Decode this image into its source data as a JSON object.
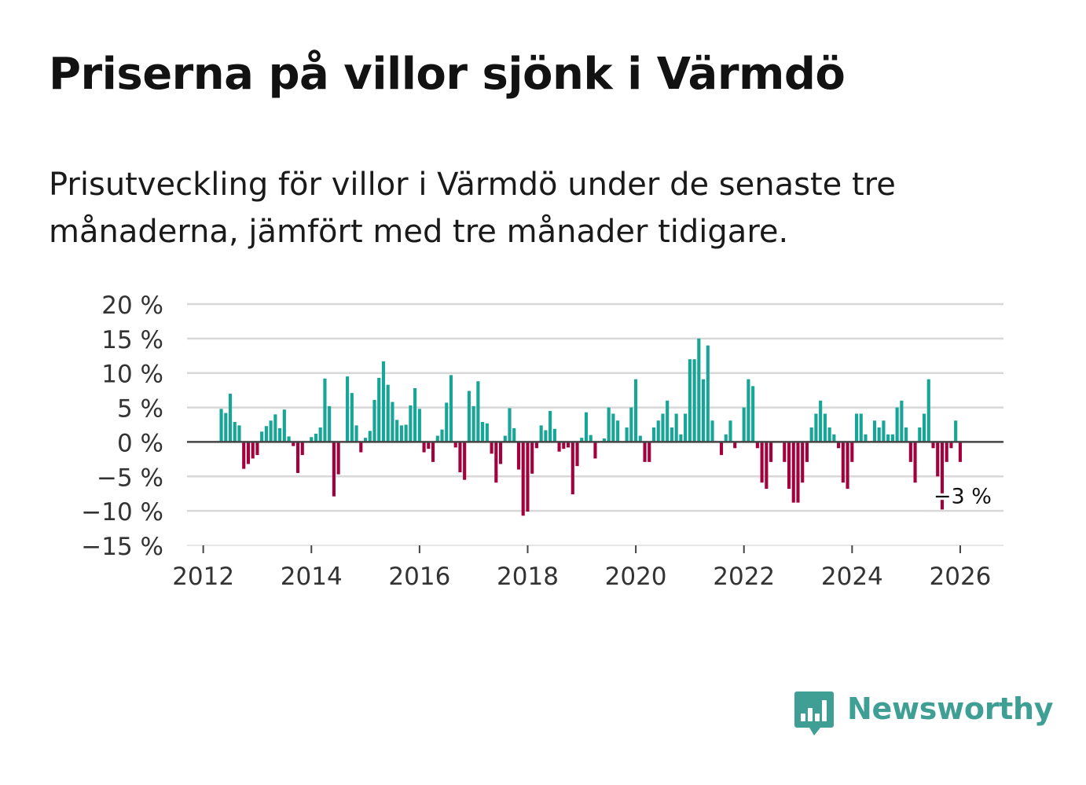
{
  "title": "Priserna på villor sjönk i Värmdö",
  "subtitle": "Prisutveckling för villor i Värmdö under de senaste tre månaderna, jämfört med tre månader tidigare.",
  "brand": {
    "name": "Newsworthy",
    "icon": "newsworthy-bar-chart-icon"
  },
  "colors": {
    "positive": "#16a596",
    "negative": "#a3003e",
    "brand": "#3f9f95",
    "grid": "#d8d8d8",
    "zero_line": "#444444"
  },
  "chart_data": {
    "type": "bar",
    "title": "",
    "xlabel": "",
    "ylabel": "",
    "ylim": [
      -15,
      20
    ],
    "xlim": [
      2011.7,
      2026.8
    ],
    "y_ticks": [
      -15,
      -10,
      -5,
      0,
      5,
      10,
      15,
      20
    ],
    "y_tick_labels": [
      "−15 %",
      "−10 %",
      "−5 %",
      "0 %",
      "5 %",
      "10 %",
      "15 %",
      "20 %"
    ],
    "x_ticks": [
      2012,
      2014,
      2016,
      2018,
      2020,
      2022,
      2024,
      2026
    ],
    "x_tick_labels": [
      "2012",
      "2014",
      "2016",
      "2018",
      "2020",
      "2022",
      "2024",
      "2026"
    ],
    "grid": true,
    "start": 2012.333,
    "step": 0.08333,
    "values": [
      4.8,
      4.2,
      7.0,
      2.9,
      2.4,
      -3.9,
      -3.2,
      -2.4,
      -1.9,
      1.5,
      2.3,
      3.1,
      4.0,
      2.0,
      4.7,
      0.8,
      -0.6,
      -4.5,
      -1.9,
      0.0,
      0.7,
      1.2,
      2.1,
      9.2,
      5.2,
      -7.9,
      -4.7,
      0.0,
      9.5,
      7.1,
      2.4,
      -1.5,
      0.6,
      1.6,
      6.1,
      9.3,
      11.7,
      8.3,
      5.8,
      3.2,
      2.4,
      2.5,
      5.3,
      7.8,
      4.8,
      -1.5,
      -1.0,
      -2.9,
      0.9,
      1.8,
      5.7,
      9.7,
      -0.8,
      -4.4,
      -5.5,
      7.4,
      5.2,
      8.8,
      2.9,
      2.7,
      -1.7,
      -5.9,
      -3.2,
      0.9,
      4.9,
      2.0,
      -4.0,
      -10.7,
      -10.1,
      -4.6,
      -0.9,
      2.4,
      1.7,
      4.5,
      1.9,
      -1.4,
      -1.0,
      -0.8,
      -7.6,
      -3.5,
      0.6,
      4.3,
      1.0,
      -2.4,
      0.0,
      0.5,
      5.0,
      4.1,
      3.1,
      0.0,
      2.1,
      5.0,
      9.1,
      0.9,
      -2.9,
      -2.9,
      2.1,
      3.1,
      4.1,
      6.0,
      2.1,
      4.1,
      1.1,
      4.1,
      12.0,
      12.0,
      15.0,
      9.1,
      14.0,
      3.1,
      0.0,
      -1.9,
      1.1,
      3.1,
      -0.9,
      0.0,
      5.0,
      9.1,
      8.1,
      -0.9,
      -5.9,
      -6.8,
      -2.9,
      0.0,
      0.0,
      -2.9,
      -6.8,
      -8.8,
      -8.8,
      -5.9,
      -2.9,
      2.1,
      4.1,
      6.0,
      4.1,
      2.1,
      1.1,
      -0.9,
      -5.9,
      -6.8,
      -2.9,
      4.1,
      4.1,
      1.1,
      0.0,
      3.1,
      2.1,
      3.1,
      1.1,
      1.1,
      5.0,
      6.0,
      2.1,
      -2.9,
      -5.9,
      2.1,
      4.1,
      9.1,
      -0.9,
      -5.0,
      -9.8,
      -2.9,
      -0.9,
      3.1,
      -2.9
    ],
    "annotation": {
      "label": "−3 %",
      "value": -3
    }
  }
}
